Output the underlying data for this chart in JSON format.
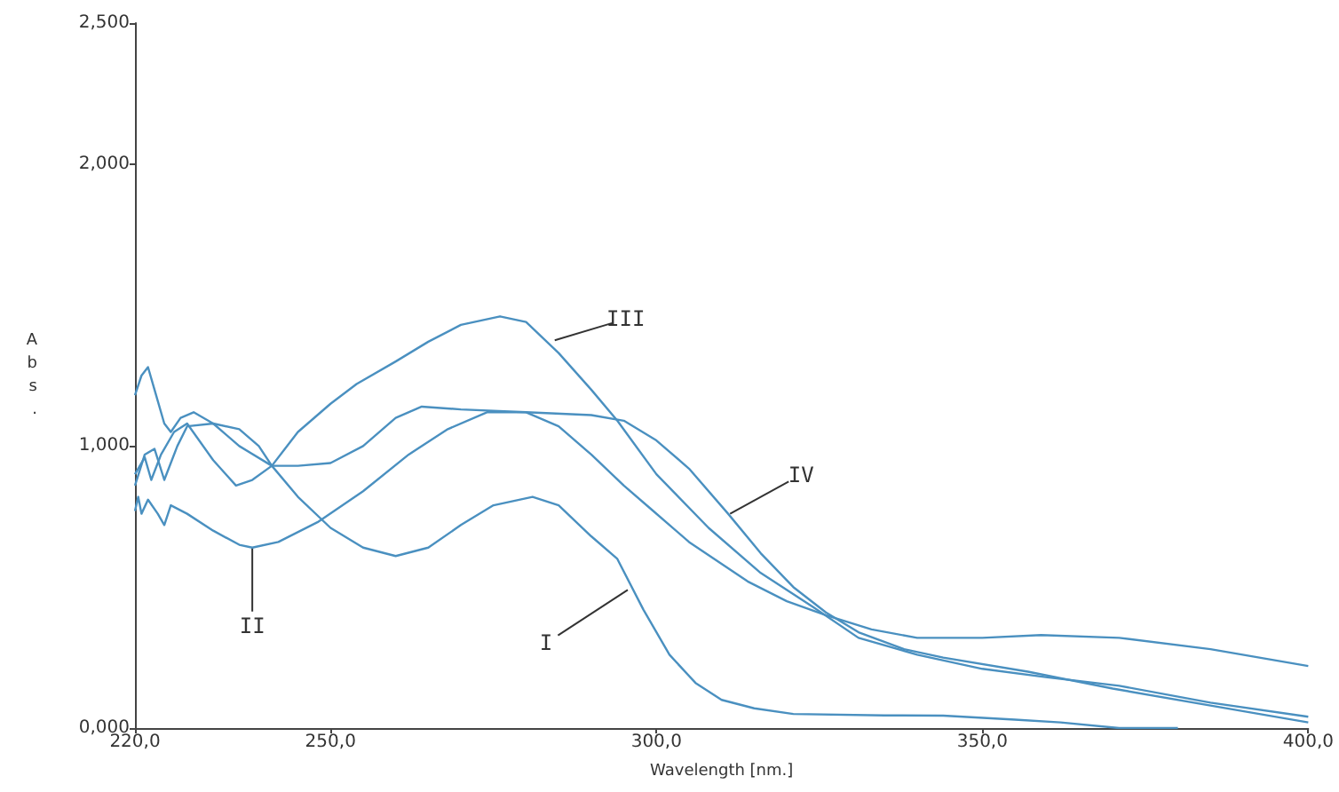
{
  "chart_data": {
    "type": "line",
    "xlabel": "Wavelength [nm.]",
    "ylabel": "Abs.",
    "xlim": [
      220,
      400
    ],
    "ylim": [
      0,
      2.5
    ],
    "xticks": [
      {
        "value": 220,
        "label": "220,0"
      },
      {
        "value": 250,
        "label": "250,0"
      },
      {
        "value": 300,
        "label": "300,0"
      },
      {
        "value": 350,
        "label": "350,0"
      },
      {
        "value": 400,
        "label": "400,0"
      }
    ],
    "yticks": [
      {
        "value": 0,
        "label": "0,000"
      },
      {
        "value": 1,
        "label": "1,000"
      },
      {
        "value": 2,
        "label": "2,000"
      },
      {
        "value": 2.5,
        "label": "2,500"
      }
    ],
    "grid": false,
    "legend": false,
    "marker": "none",
    "line_style": "solid",
    "series": [
      {
        "color": "#4a90c0",
        "x": [
          220,
          221.5,
          223,
          224.5,
          226.5,
          228,
          232,
          236,
          239,
          241,
          245,
          250,
          255,
          260,
          265,
          270,
          275,
          281,
          285,
          290,
          294,
          298,
          302,
          306,
          310,
          315,
          321,
          335,
          344,
          355,
          362,
          371,
          380
        ],
        "values": [
          0.86,
          0.97,
          0.99,
          0.88,
          1.0,
          1.07,
          1.08,
          1.06,
          1.0,
          0.93,
          0.82,
          0.71,
          0.64,
          0.61,
          0.64,
          0.72,
          0.79,
          0.82,
          0.79,
          0.68,
          0.6,
          0.42,
          0.26,
          0.16,
          0.1,
          0.07,
          0.05,
          0.045,
          0.044,
          0.03,
          0.02,
          0.0,
          0.0
        ]
      },
      {
        "color": "#4a90c0",
        "x": [
          220,
          220.5,
          221,
          222,
          223.5,
          224.5,
          225.5,
          228,
          232,
          236,
          238,
          242,
          248,
          255,
          262,
          268,
          274,
          280,
          285,
          290,
          295,
          299,
          305,
          314,
          320,
          326,
          333,
          340,
          350,
          359,
          371,
          385,
          400
        ],
        "values": [
          0.77,
          0.82,
          0.76,
          0.81,
          0.76,
          0.72,
          0.79,
          0.76,
          0.7,
          0.65,
          0.64,
          0.66,
          0.73,
          0.84,
          0.97,
          1.06,
          1.12,
          1.12,
          1.07,
          0.97,
          0.86,
          0.78,
          0.66,
          0.52,
          0.45,
          0.4,
          0.35,
          0.32,
          0.32,
          0.33,
          0.32,
          0.28,
          0.22
        ]
      },
      {
        "color": "#4a90c0",
        "x": [
          220,
          221.5,
          222.5,
          224,
          226,
          228,
          232,
          235.5,
          238,
          241,
          245,
          250,
          254,
          260,
          265,
          270,
          276,
          280,
          285,
          290,
          294,
          300,
          308,
          316,
          324,
          331,
          340,
          350,
          360,
          371,
          385,
          400
        ],
        "values": [
          0.9,
          0.96,
          0.88,
          0.97,
          1.05,
          1.08,
          0.95,
          0.86,
          0.88,
          0.93,
          1.05,
          1.15,
          1.22,
          1.3,
          1.37,
          1.43,
          1.46,
          1.44,
          1.33,
          1.2,
          1.09,
          0.9,
          0.71,
          0.55,
          0.43,
          0.32,
          0.26,
          0.21,
          0.18,
          0.15,
          0.09,
          0.04
        ]
      },
      {
        "color": "#4a90c0",
        "x": [
          220,
          221,
          222,
          223,
          224.5,
          225.5,
          227,
          229,
          232,
          236,
          241,
          245,
          250,
          255,
          260,
          264,
          270,
          280,
          290,
          295,
          300,
          305,
          311,
          316,
          321,
          326,
          331,
          338,
          344,
          357,
          370,
          385,
          400
        ],
        "values": [
          1.18,
          1.25,
          1.28,
          1.2,
          1.08,
          1.05,
          1.1,
          1.12,
          1.08,
          1.0,
          0.93,
          0.93,
          0.94,
          1.0,
          1.1,
          1.14,
          1.13,
          1.12,
          1.11,
          1.09,
          1.02,
          0.92,
          0.76,
          0.62,
          0.5,
          0.41,
          0.34,
          0.28,
          0.25,
          0.2,
          0.14,
          0.08,
          0.02
        ]
      }
    ],
    "annotations": [
      {
        "text": "III",
        "x": 284.4,
        "y": 1.375
      },
      {
        "text": "IV",
        "x": 311.3,
        "y": 0.76
      },
      {
        "text": "II",
        "x": 238,
        "y": 0.64
      },
      {
        "text": "I",
        "x": 295.6,
        "y": 0.49
      }
    ]
  }
}
